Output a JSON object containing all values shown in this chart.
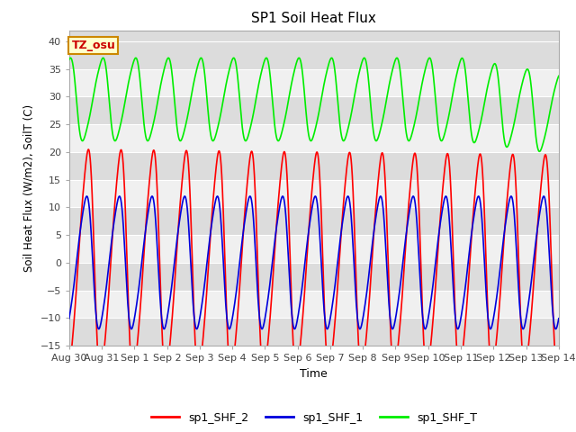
{
  "title": "SP1 Soil Heat Flux",
  "xlabel": "Time",
  "ylabel": "Soil Heat Flux (W/m2), SoilT (C)",
  "ylim": [
    -15,
    42
  ],
  "yticks": [
    -15,
    -10,
    -5,
    0,
    5,
    10,
    15,
    20,
    25,
    30,
    35,
    40
  ],
  "color_shf2": "#FF0000",
  "color_shf1": "#0000DD",
  "color_shft": "#00EE00",
  "annotation_text": "TZ_osu",
  "annotation_bg": "#FFFFCC",
  "annotation_border": "#CC8800",
  "legend_labels": [
    "sp1_SHF_2",
    "sp1_SHF_1",
    "sp1_SHF_T"
  ],
  "xtick_positions": [
    0,
    1,
    2,
    3,
    4,
    5,
    6,
    7,
    8,
    9,
    10,
    11,
    12,
    13,
    14,
    15
  ],
  "xtick_labels": [
    "Aug 30",
    "Aug 31",
    "Sep 1",
    "Sep 2",
    "Sep 3",
    "Sep 4",
    "Sep 5",
    "Sep 6",
    "Sep 7",
    "Sep 8",
    "Sep 9",
    "Sep 10",
    "Sep 11",
    "Sep 12",
    "Sep 13",
    "Sep 14"
  ],
  "band_colors": [
    "#DCDCDC",
    "#F0F0F0"
  ],
  "spine_color": "#AAAAAA",
  "tick_color": "#444444"
}
